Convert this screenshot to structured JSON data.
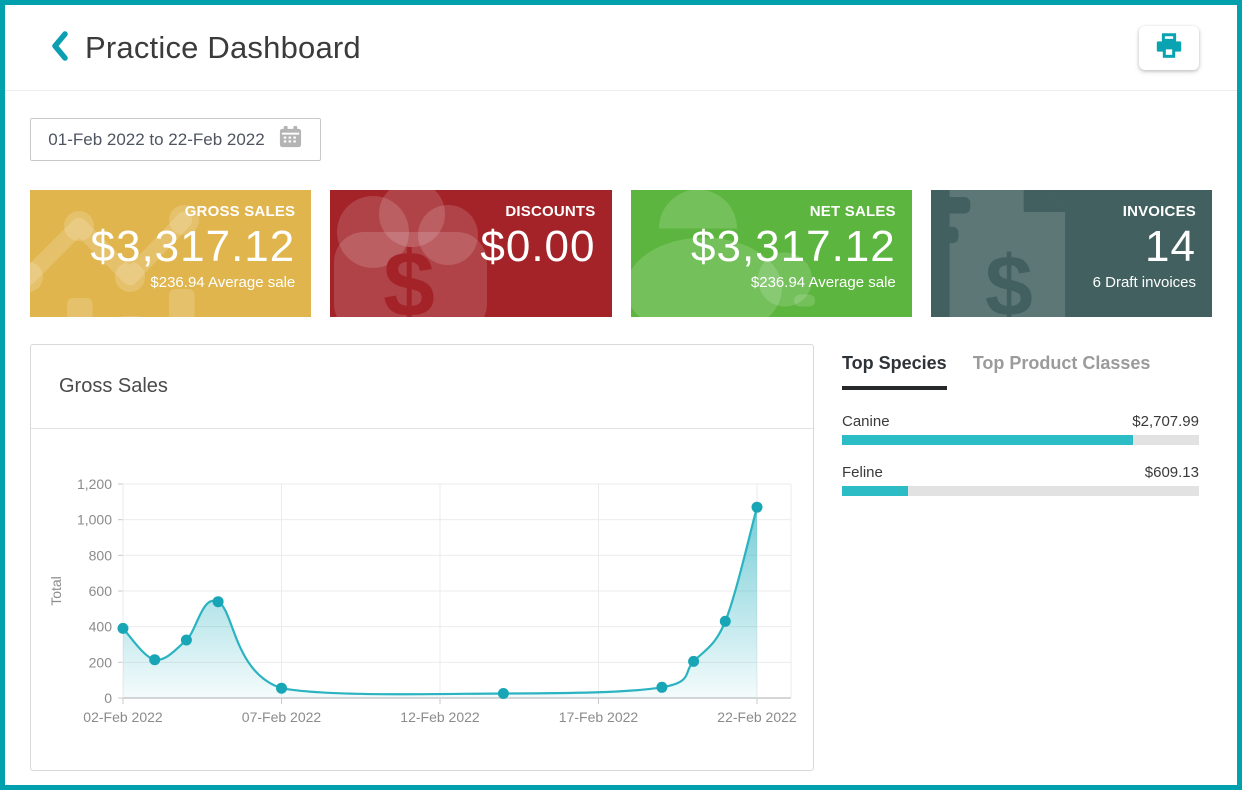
{
  "header": {
    "title": "Practice Dashboard"
  },
  "toolbar": {
    "date_range": "01-Feb 2022 to 22-Feb 2022"
  },
  "cards": [
    {
      "label": "GROSS SALES",
      "value": "$3,317.12",
      "sub": "$236.94 Average sale",
      "color": "#e0b54d",
      "icon": "trend-chart-icon"
    },
    {
      "label": "DISCOUNTS",
      "value": "$0.00",
      "sub": "",
      "color": "#a32328",
      "icon": "money-bag-icon"
    },
    {
      "label": "NET SALES",
      "value": "$3,317.12",
      "sub": "$236.94 Average sale",
      "color": "#5cb53f",
      "icon": "piggy-bank-icon"
    },
    {
      "label": "INVOICES",
      "value": "14",
      "sub": "6 Draft invoices",
      "color": "#41605f",
      "icon": "invoice-dollar-icon"
    }
  ],
  "chart_panel": {
    "title": "Gross Sales"
  },
  "chart_data": {
    "type": "area",
    "title": "Gross Sales",
    "xlabel": "",
    "ylabel": "Total",
    "ylim": [
      0,
      1200
    ],
    "grid": true,
    "legend": "none",
    "line_color": "#2bb3c1",
    "dot_color": "#18a6b6",
    "x_range_days": [
      2,
      22
    ],
    "x_ticks": [
      {
        "day": 2,
        "label": "02-Feb 2022"
      },
      {
        "day": 7,
        "label": "07-Feb 2022"
      },
      {
        "day": 12,
        "label": "12-Feb 2022"
      },
      {
        "day": 17,
        "label": "17-Feb 2022"
      },
      {
        "day": 22,
        "label": "22-Feb 2022"
      }
    ],
    "y_ticks": [
      {
        "v": 0,
        "label": "0"
      },
      {
        "v": 200,
        "label": "200"
      },
      {
        "v": 400,
        "label": "400"
      },
      {
        "v": 600,
        "label": "600"
      },
      {
        "v": 800,
        "label": "800"
      },
      {
        "v": 1000,
        "label": "1,000"
      },
      {
        "v": 1200,
        "label": "1,200"
      }
    ],
    "points": [
      {
        "date": "02-Feb 2022",
        "day": 2,
        "value": 390
      },
      {
        "date": "03-Feb 2022",
        "day": 3,
        "value": 215
      },
      {
        "date": "04-Feb 2022",
        "day": 4,
        "value": 325
      },
      {
        "date": "05-Feb 2022",
        "day": 5,
        "value": 540
      },
      {
        "date": "07-Feb 2022",
        "day": 7,
        "value": 55
      },
      {
        "date": "14-Feb 2022",
        "day": 14,
        "value": 25
      },
      {
        "date": "19-Feb 2022",
        "day": 19,
        "value": 60
      },
      {
        "date": "20-Feb 2022",
        "day": 20,
        "value": 205
      },
      {
        "date": "21-Feb 2022",
        "day": 21,
        "value": 430
      },
      {
        "date": "22-Feb 2022",
        "day": 22,
        "value": 1070
      }
    ]
  },
  "side_panel": {
    "tabs": [
      {
        "label": "Top Species",
        "active": true
      },
      {
        "label": "Top Product Classes",
        "active": false
      }
    ],
    "rows": [
      {
        "label": "Canine",
        "value": "$2,707.99",
        "percent": 81.6
      },
      {
        "label": "Feline",
        "value": "$609.13",
        "percent": 18.4
      }
    ],
    "bar_color": "#2cbcc6"
  },
  "colors": {
    "accent_teal": "#00a1ad",
    "chart_line": "#2bb3c1",
    "bar_fill": "#2cbcc6"
  }
}
